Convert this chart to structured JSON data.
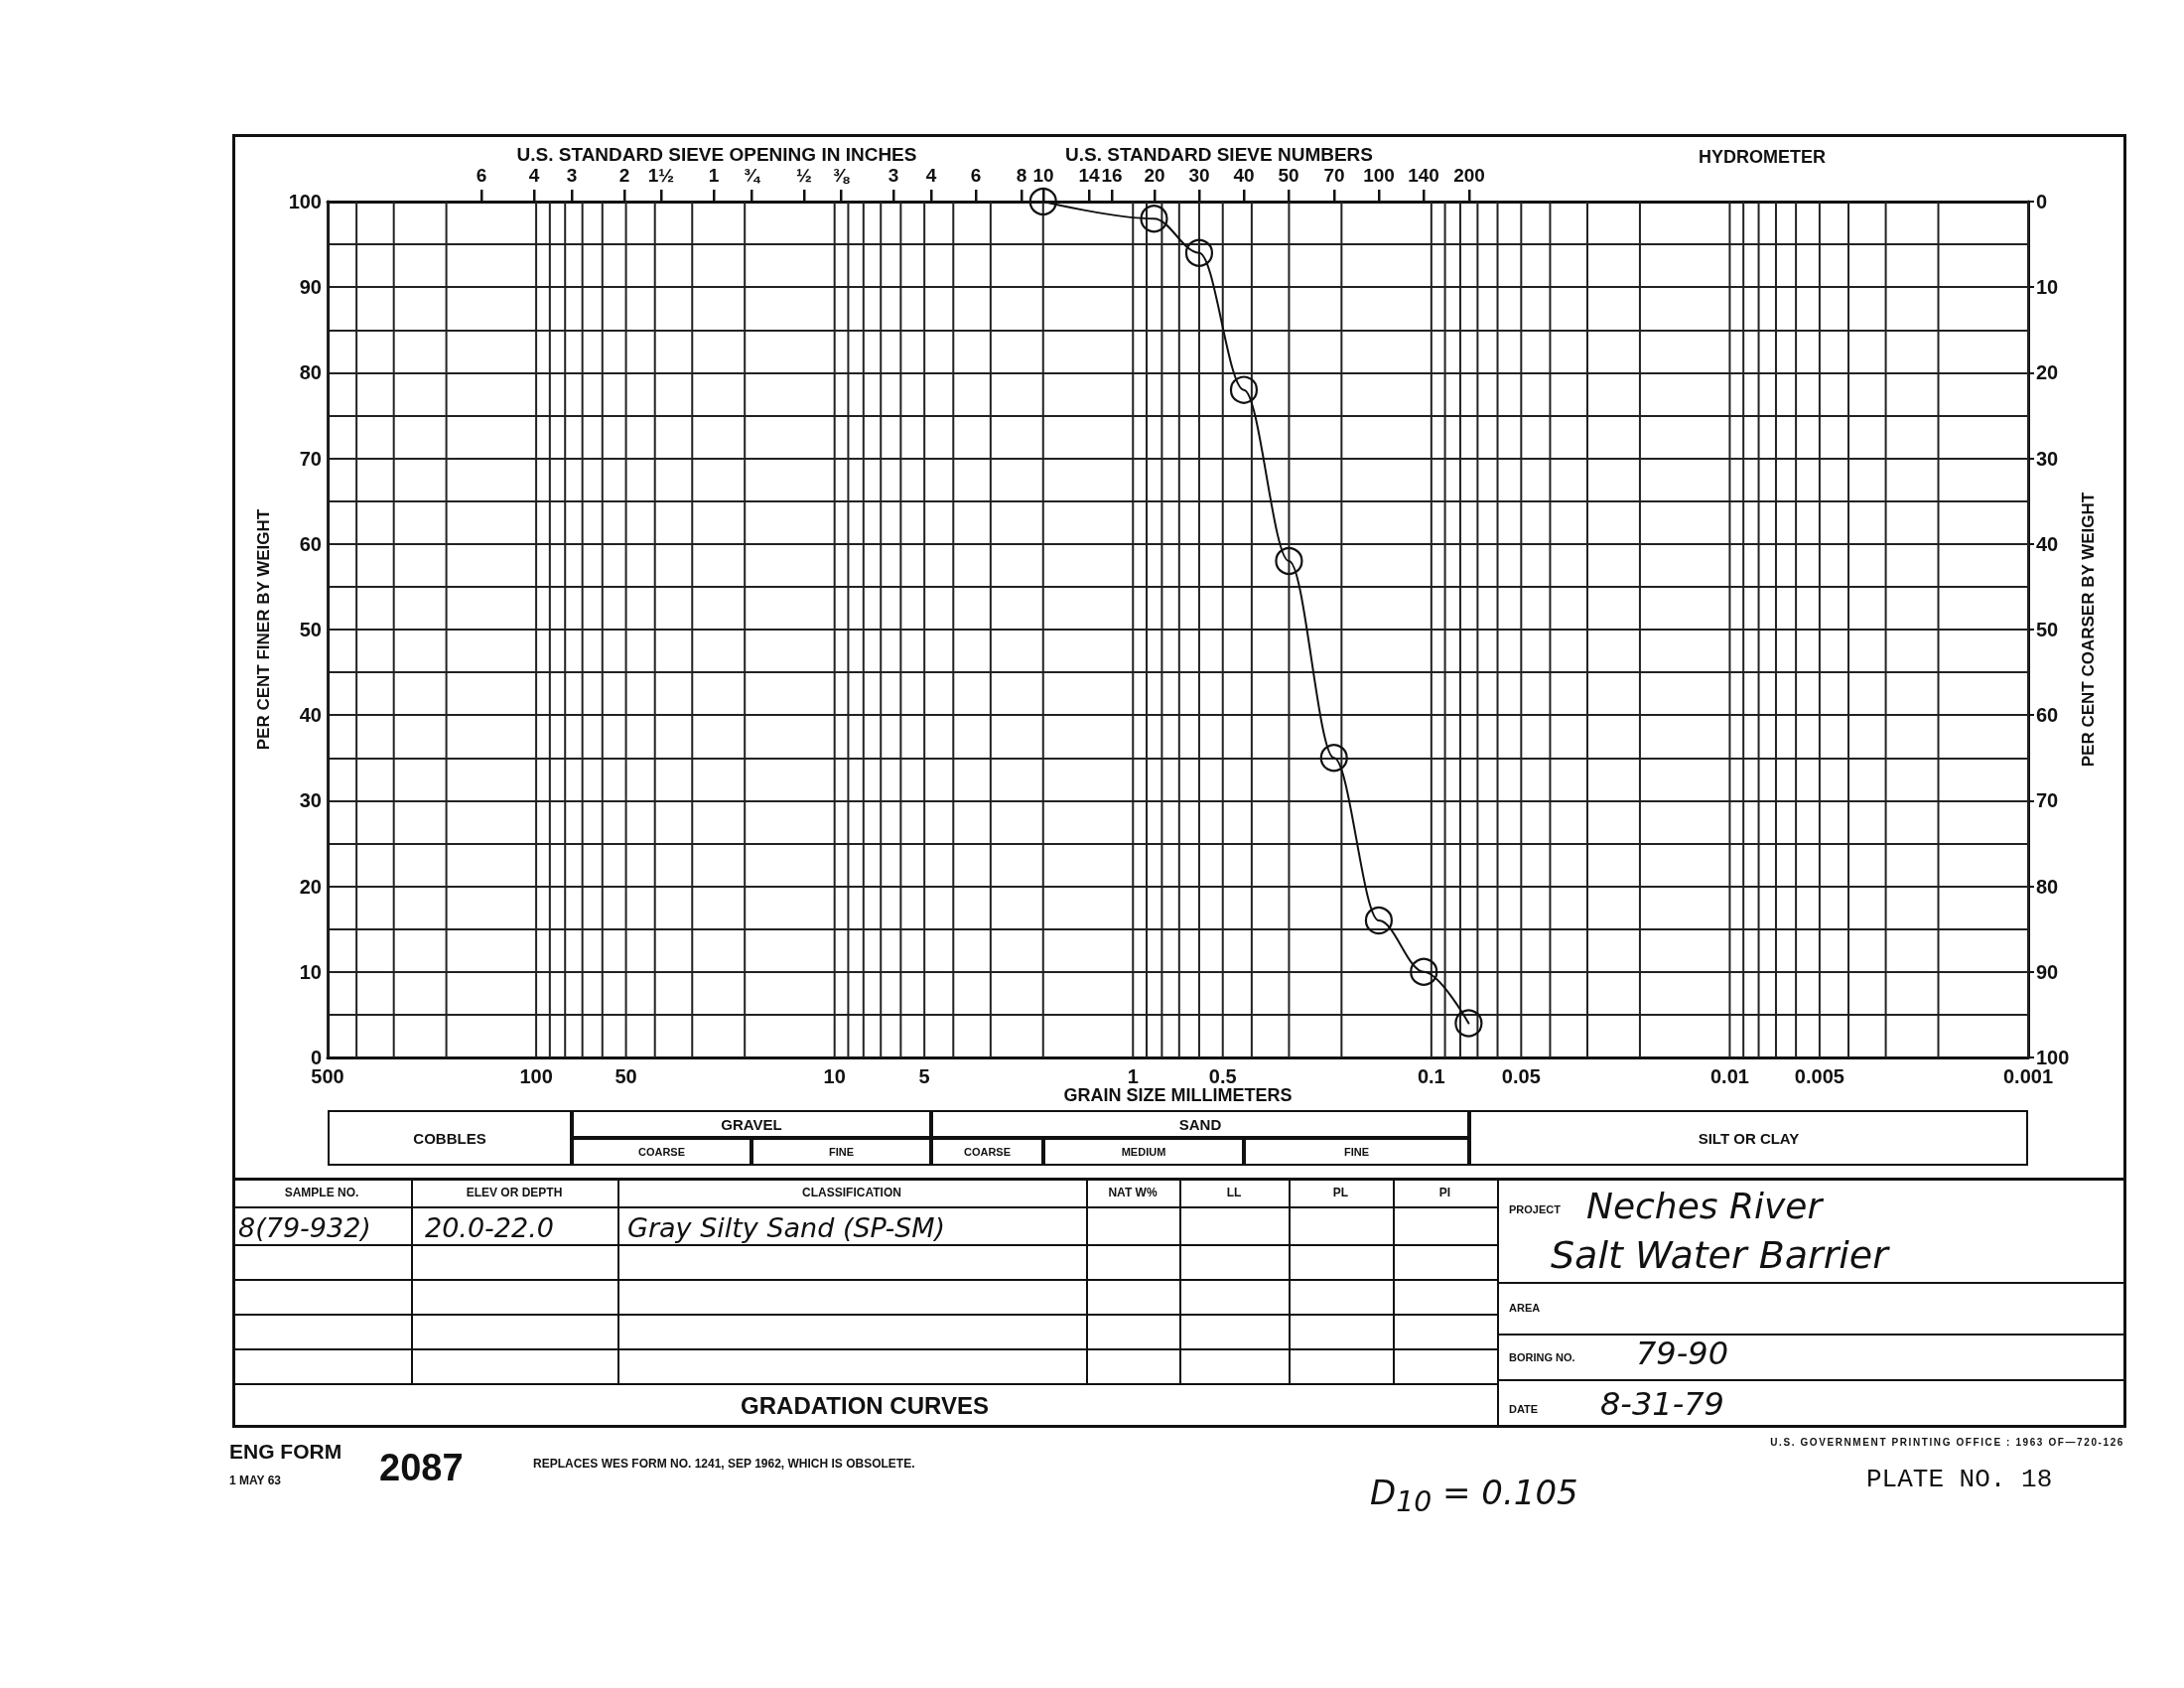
{
  "chart_data": {
    "type": "line",
    "title": "GRADATION CURVES",
    "xlabel": "GRAIN SIZE MILLIMETERS",
    "ylabel": "PER CENT FINER BY WEIGHT",
    "y2label": "PER CENT COARSER BY WEIGHT",
    "x": [
      2.0,
      0.85,
      0.6,
      0.425,
      0.3,
      0.212,
      0.15,
      0.106,
      0.075
    ],
    "values": [
      100,
      98,
      94,
      78,
      58,
      35,
      16,
      10,
      4
    ],
    "color": "#111111",
    "marker": "circle",
    "line_style": "solid",
    "log": "x",
    "grid": true,
    "xlim": [
      500,
      0.001
    ],
    "xticks": [
      500,
      {
        "value": 400,
        "label": null
      },
      {
        "value": 300,
        "label": null
      },
      {
        "value": 200,
        "label": null
      },
      100,
      {
        "value": 90,
        "label": null
      },
      {
        "value": 80,
        "label": null
      },
      {
        "value": 70,
        "label": null
      },
      {
        "value": 60,
        "label": null
      },
      50,
      {
        "value": 40,
        "label": null
      },
      {
        "value": 30,
        "label": null
      },
      {
        "value": 20,
        "label": null
      },
      10,
      {
        "value": 9,
        "label": null
      },
      {
        "value": 8,
        "label": null
      },
      {
        "value": 7,
        "label": null
      },
      {
        "value": 6,
        "label": null
      },
      5,
      {
        "value": 4,
        "label": null
      },
      {
        "value": 3,
        "label": null
      },
      {
        "value": 2,
        "label": null
      },
      1,
      {
        "value": 0.9,
        "label": null
      },
      {
        "value": 0.8,
        "label": null
      },
      {
        "value": 0.7,
        "label": null
      },
      {
        "value": 0.6,
        "label": null
      },
      0.5,
      {
        "value": 0.4,
        "label": null
      },
      {
        "value": 0.3,
        "label": null
      },
      {
        "value": 0.2,
        "label": null
      },
      0.1,
      {
        "value": 0.09,
        "label": null
      },
      {
        "value": 0.08,
        "label": null
      },
      {
        "value": 0.07,
        "label": null
      },
      {
        "value": 0.06,
        "label": null
      },
      0.05,
      {
        "value": 0.04,
        "label": null
      },
      {
        "value": 0.03,
        "label": null
      },
      {
        "value": 0.02,
        "label": null
      },
      0.01,
      {
        "value": 0.009,
        "label": null
      },
      {
        "value": 0.008,
        "label": null
      },
      {
        "value": 0.007,
        "label": null
      },
      {
        "value": 0.006,
        "label": null
      },
      0.005,
      {
        "value": 0.004,
        "label": null
      },
      {
        "value": 0.003,
        "label": null
      },
      {
        "value": 0.002,
        "label": null
      },
      0.001
    ],
    "ylim": [
      0,
      100
    ],
    "yticks": [
      0,
      {
        "value": 5,
        "label": null
      },
      10,
      {
        "value": 15,
        "label": null
      },
      20,
      {
        "value": 25,
        "label": null
      },
      30,
      {
        "value": 35,
        "label": null
      },
      40,
      {
        "value": 45,
        "label": null
      },
      50,
      {
        "value": 55,
        "label": null
      },
      60,
      {
        "value": 65,
        "label": null
      },
      70,
      {
        "value": 75,
        "label": null
      },
      80,
      {
        "value": 85,
        "label": null
      },
      90,
      {
        "value": 95,
        "label": null
      },
      100
    ],
    "y2lim": [
      100,
      0
    ],
    "y2ticks": [
      0,
      10,
      20,
      30,
      40,
      50,
      60,
      70,
      80,
      90,
      100
    ],
    "annotations": [
      "U.S. STANDARD SIEVE OPENING IN INCHES",
      "U.S. STANDARD SIEVE NUMBERS",
      "HYDROMETER",
      "6",
      "4",
      "3",
      "2",
      "1½",
      "1",
      "¾",
      "½",
      "⅜",
      "3",
      "4",
      "6",
      "8",
      "10",
      "14",
      "16",
      "20",
      "30",
      "40",
      "50",
      "70",
      "100",
      "140",
      "200",
      "COBBLES",
      "GRAVEL",
      "COARSE",
      "FINE",
      "SAND",
      "COARSE",
      "MEDIUM",
      "FINE",
      "SILT OR CLAY",
      "SAMPLE NO.",
      "ELEV OR DEPTH",
      "CLASSIFICATION",
      "NAT W%",
      "LL",
      "PL",
      "PI",
      "8(79-932)",
      "20.0-22.0",
      "Gray Silty Sand (SP-SM)",
      "PROJECT",
      "Neches River",
      "Salt Water Barrier",
      "AREA",
      "BORING NO.",
      "79-90",
      "DATE",
      "8-31-79",
      "ENG FORM",
      "1 MAY 63",
      "2087",
      "REPLACES WES FORM NO. 1241, SEP 1962, WHICH IS OBSOLETE.",
      "U.S. GOVERNMENT PRINTING OFFICE : 1963 OF—720-126",
      "D$_{10}$ = 0.105",
      "PLATE NO. 18"
    ]
  }
}
